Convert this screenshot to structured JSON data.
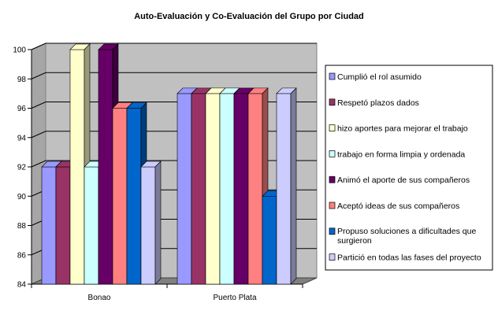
{
  "chart_data": {
    "type": "bar",
    "title": "Auto-Evaluación y Co-Evaluación del Grupo por Ciudad",
    "xlabel": "",
    "ylabel": "",
    "ylim": [
      84,
      100
    ],
    "yticks": [
      "84",
      "86",
      "88",
      "90",
      "92",
      "94",
      "96",
      "98",
      "100"
    ],
    "categories": [
      "Bonao",
      "Puerto Plata"
    ],
    "grid": true,
    "legend_position": "right",
    "series": [
      {
        "name": "Cumplió el rol asumido",
        "color": "#9999ff",
        "values": [
          92,
          97
        ]
      },
      {
        "name": "Respetó plazos dados",
        "color": "#993366",
        "values": [
          92,
          97
        ]
      },
      {
        "name": "hizo aportes para mejorar el trabajo",
        "color": "#ffffcc",
        "values": [
          100,
          97
        ]
      },
      {
        "name": "trabajo en forma limpia y ordenada",
        "color": "#ccffff",
        "values": [
          92,
          97
        ]
      },
      {
        "name": "Animó el aporte de sus compañeros",
        "color": "#660066",
        "values": [
          100,
          97
        ]
      },
      {
        "name": "Aceptó ideas de sus compañeros",
        "color": "#ff8080",
        "values": [
          96,
          97
        ]
      },
      {
        "name": "Propuso soluciones a dificultades que surgieron",
        "color": "#0066cc",
        "values": [
          96,
          90
        ]
      },
      {
        "name": "Partició en todas las fases del proyecto",
        "color": "#ccccff",
        "values": [
          92,
          97
        ]
      }
    ]
  }
}
